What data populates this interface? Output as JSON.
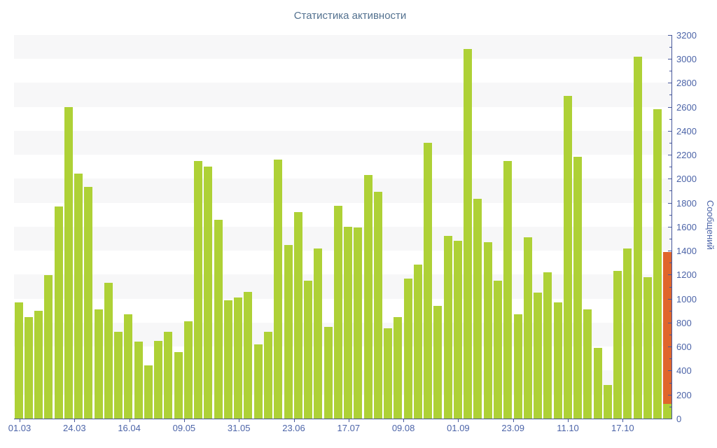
{
  "title": "Статистика активности",
  "y_axis_title": "Сообщений",
  "chart_data": {
    "type": "bar",
    "title": "Статистика активности",
    "ylabel": "Сообщений",
    "ylim": [
      0,
      3200
    ],
    "y_tick_step": 200,
    "y_tick_labels": [
      "0",
      "200",
      "400",
      "600",
      "800",
      "1000",
      "1200",
      "1400",
      "1600",
      "1800",
      "2000",
      "2200",
      "2400",
      "2600",
      "2800",
      "3000",
      "3200"
    ],
    "grid": "alternating horizontal bands",
    "legend_position": "none",
    "x_tick_labels": [
      "01.03",
      "24.03",
      "16.04",
      "09.05",
      "31.05",
      "23.06",
      "17.07",
      "09.08",
      "01.09",
      "23.09",
      "11.10",
      "17.10"
    ],
    "series": [
      {
        "name": "Сообщений",
        "color": "#aed136",
        "values": [
          970,
          845,
          900,
          1195,
          1770,
          2600,
          2040,
          1930,
          910,
          1135,
          725,
          870,
          640,
          445,
          650,
          725,
          555,
          810,
          2150,
          2100,
          1660,
          985,
          1010,
          1055,
          620,
          725,
          2160,
          1445,
          1720,
          1150,
          1420,
          765,
          1775,
          1600,
          1595,
          2030,
          1890,
          755,
          845,
          1165,
          1285,
          2300,
          940,
          1525,
          1480,
          3080,
          1830,
          1470,
          1150,
          2150,
          870,
          1510,
          1050,
          1220,
          970,
          2690,
          2180,
          910,
          590,
          280,
          1230,
          1420,
          3020,
          1180,
          2580
        ]
      }
    ],
    "highlighted_last_bar": {
      "description": "final column drawn as stacked: green base then orange remainder",
      "green_base": 120,
      "total": 1390,
      "orange_color": "#e0662c",
      "green_color": "#aed136"
    }
  },
  "colors": {
    "bar_green": "#aed136",
    "bar_orange": "#e0662c",
    "axis_line": "#47589b",
    "tick_text": "#4c64a8",
    "title_text": "#53718f",
    "band_gray": "#f7f7f8",
    "background": "#ffffff"
  }
}
